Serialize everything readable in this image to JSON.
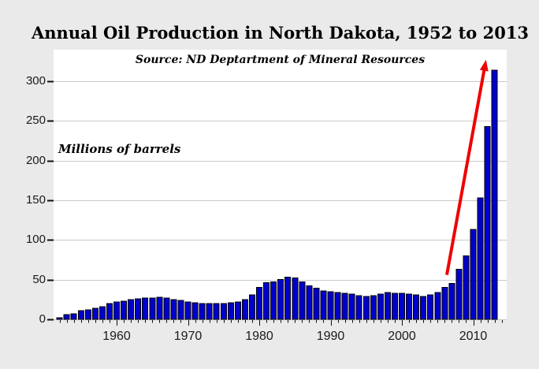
{
  "chart_data": {
    "type": "bar",
    "title": "Annual Oil Production in North Dakota, 1952 to 2013",
    "source_note": "Source: ND Deptartment of Mineral Resources",
    "ylabel_note": "Millions of barrels",
    "unit": "millions of barrels",
    "years": [
      1952,
      1953,
      1954,
      1955,
      1956,
      1957,
      1958,
      1959,
      1960,
      1961,
      1962,
      1963,
      1964,
      1965,
      1966,
      1967,
      1968,
      1969,
      1970,
      1971,
      1972,
      1973,
      1974,
      1975,
      1976,
      1977,
      1978,
      1979,
      1980,
      1981,
      1982,
      1983,
      1984,
      1985,
      1986,
      1987,
      1988,
      1989,
      1990,
      1991,
      1992,
      1993,
      1994,
      1995,
      1996,
      1997,
      1998,
      1999,
      2000,
      2001,
      2002,
      2003,
      2004,
      2005,
      2006,
      2007,
      2008,
      2009,
      2010,
      2011,
      2012,
      2013
    ],
    "values": [
      2,
      6,
      7,
      11,
      12,
      14,
      16,
      20,
      22,
      23,
      25,
      26,
      27,
      27,
      28,
      27,
      25,
      24,
      22,
      21,
      20,
      20,
      20,
      20,
      21,
      22,
      25,
      31,
      40,
      46,
      47,
      50,
      53,
      52,
      47,
      42,
      39,
      36,
      35,
      34,
      33,
      32,
      30,
      29,
      30,
      32,
      34,
      33,
      33,
      32,
      31,
      29,
      31,
      34,
      40,
      45,
      63,
      80,
      113,
      153,
      243,
      314
    ],
    "xticks": [
      1960,
      1970,
      1980,
      1990,
      2000,
      2010
    ],
    "yticks": [
      0,
      50,
      100,
      150,
      200,
      250,
      300
    ],
    "ylim": [
      0,
      337
    ],
    "grid": "horizontal",
    "legend": "none",
    "annotation_arrow": {
      "description": "red arrow emphasizing the post-2006 production surge",
      "from": {
        "year": 2006.3,
        "value": 56
      },
      "to": {
        "year": 2011.8,
        "value": 327
      }
    }
  },
  "colors": {
    "page_background": "#eaeaea",
    "plot_background": "#ffffff",
    "gridline": "#c9c9c9",
    "bar_fill": "#0000cc",
    "bar_edge": "#000000",
    "tick": "#111111",
    "tick_label": "#1a1a1a",
    "arrow": "#ee0202",
    "text": "#000000"
  }
}
